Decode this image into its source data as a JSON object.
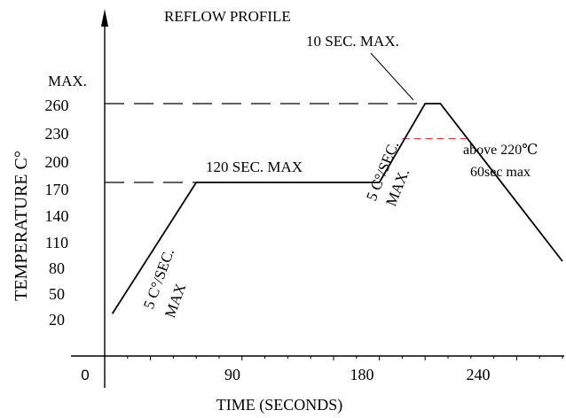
{
  "chart_data": {
    "type": "line",
    "title": "REFLOW PROFILE",
    "xlabel": "TIME (SECONDS)",
    "ylabel": "TEMPERATURE C°",
    "ymax_label": "MAX.",
    "x_ticks": [
      "0",
      "90",
      "180",
      "240"
    ],
    "y_ticks": [
      "260",
      "230",
      "200",
      "170",
      "140",
      "110",
      "80",
      "50",
      "20"
    ],
    "profile": [
      {
        "t": 5,
        "temp": 20
      },
      {
        "t": 60,
        "temp": 170
      },
      {
        "t": 180,
        "temp": 170
      },
      {
        "t": 210,
        "temp": 260
      },
      {
        "t": 220,
        "temp": 260
      },
      {
        "t": 300,
        "temp": 80
      }
    ],
    "reference_lines": [
      {
        "temp": 260,
        "from_t": 0,
        "to_t": 210,
        "style": "dashed",
        "color": "#000000"
      },
      {
        "temp": 170,
        "from_t": 0,
        "to_t": 60,
        "style": "dashed",
        "color": "#000000"
      },
      {
        "temp": 220,
        "from_t": 195,
        "to_t": 238,
        "style": "dashed",
        "color": "#e03c3c"
      }
    ],
    "annotations": {
      "ramp_up": [
        "5 C°/SEC.",
        "MAX"
      ],
      "soak": "120 SEC. MAX",
      "ramp_to_peak": [
        "5 C°/SEC.",
        "MAX."
      ],
      "peak": "10 SEC. MAX.",
      "above_220": [
        "above 220℃",
        "60sec max"
      ]
    }
  }
}
